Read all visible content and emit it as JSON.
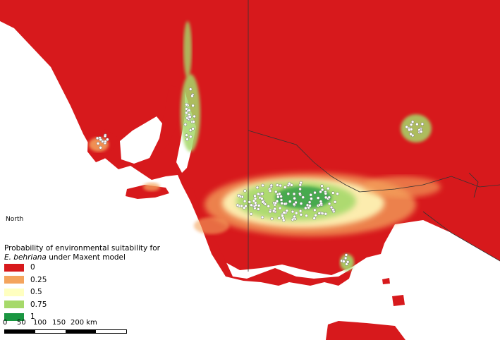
{
  "north_label": "North",
  "legend": {
    "title_line1": "Probability of environmental suitability for",
    "title_species": "E. behriana",
    "title_rest": " under Maxent model",
    "items": [
      {
        "label": "0",
        "color": "#d7191c"
      },
      {
        "label": "0.25",
        "color": "#f4a45d"
      },
      {
        "label": "0.5",
        "color": "#ffffc0"
      },
      {
        "label": "0.75",
        "color": "#a6d96a"
      },
      {
        "label": "1",
        "color": "#1a9641"
      }
    ]
  },
  "scale": {
    "ticks": [
      "0",
      "50",
      "100",
      "150",
      "200 km"
    ]
  },
  "colors": {
    "water": "#ffffff",
    "land_low": "#d7191c",
    "border": "#333333",
    "occurrence": "#ffffff"
  }
}
